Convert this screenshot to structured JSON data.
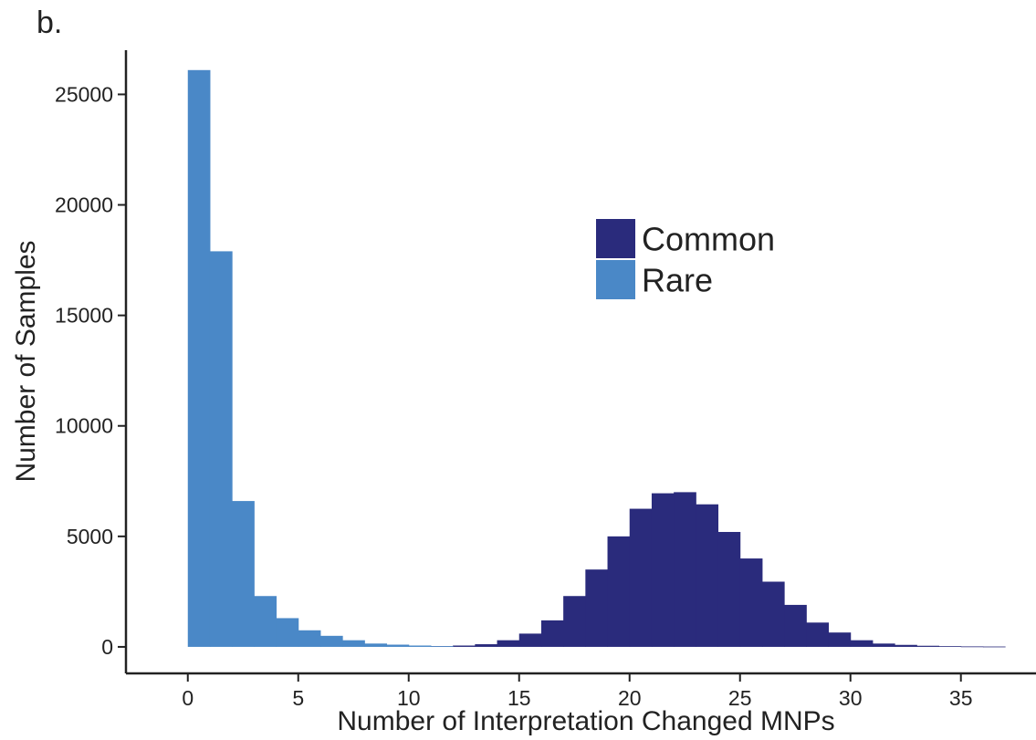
{
  "panel_label": "b.",
  "chart_data": {
    "type": "bar",
    "xlabel": "Number of Interpretation Changed MNPs",
    "ylabel": "Number of Samples",
    "xlim": [
      -2.8,
      38.4
    ],
    "ylim": [
      -1200,
      27000
    ],
    "x_ticks": [
      0,
      5,
      10,
      15,
      20,
      25,
      30,
      35
    ],
    "y_ticks": [
      0,
      5000,
      10000,
      15000,
      20000,
      25000
    ],
    "bin_width": 1,
    "legend_position": "center-right",
    "grid": false,
    "series": [
      {
        "name": "Common",
        "color": "#2a2b7c",
        "bins": [
          {
            "x": 11,
            "y": 30
          },
          {
            "x": 12,
            "y": 60
          },
          {
            "x": 13,
            "y": 120
          },
          {
            "x": 14,
            "y": 300
          },
          {
            "x": 15,
            "y": 600
          },
          {
            "x": 16,
            "y": 1200
          },
          {
            "x": 17,
            "y": 2300
          },
          {
            "x": 18,
            "y": 3500
          },
          {
            "x": 19,
            "y": 5000
          },
          {
            "x": 20,
            "y": 6250
          },
          {
            "x": 21,
            "y": 6950
          },
          {
            "x": 22,
            "y": 7000
          },
          {
            "x": 23,
            "y": 6450
          },
          {
            "x": 24,
            "y": 5200
          },
          {
            "x": 25,
            "y": 4000
          },
          {
            "x": 26,
            "y": 2950
          },
          {
            "x": 27,
            "y": 1900
          },
          {
            "x": 28,
            "y": 1100
          },
          {
            "x": 29,
            "y": 650
          },
          {
            "x": 30,
            "y": 300
          },
          {
            "x": 31,
            "y": 150
          },
          {
            "x": 32,
            "y": 90
          },
          {
            "x": 33,
            "y": 50
          },
          {
            "x": 34,
            "y": 30
          },
          {
            "x": 35,
            "y": 20
          },
          {
            "x": 36,
            "y": 15
          }
        ]
      },
      {
        "name": "Rare",
        "color": "#4a88c7",
        "bins": [
          {
            "x": 0,
            "y": 26100
          },
          {
            "x": 1,
            "y": 17900
          },
          {
            "x": 2,
            "y": 6600
          },
          {
            "x": 3,
            "y": 2300
          },
          {
            "x": 4,
            "y": 1300
          },
          {
            "x": 5,
            "y": 750
          },
          {
            "x": 6,
            "y": 500
          },
          {
            "x": 7,
            "y": 300
          },
          {
            "x": 8,
            "y": 150
          },
          {
            "x": 9,
            "y": 100
          },
          {
            "x": 10,
            "y": 60
          },
          {
            "x": 11,
            "y": 30
          }
        ]
      }
    ]
  }
}
